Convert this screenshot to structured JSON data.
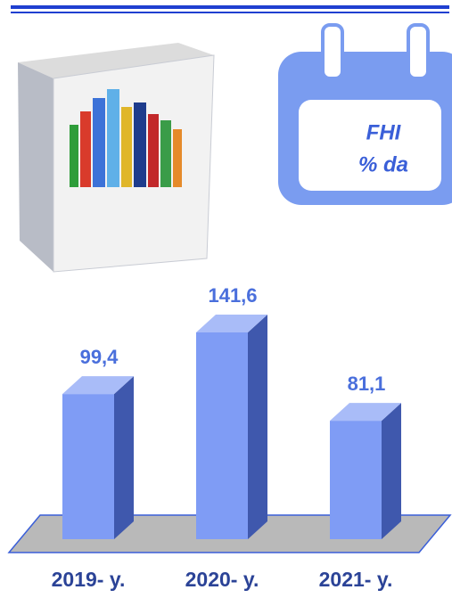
{
  "chart_data": {
    "type": "bar",
    "categories": [
      "2019- y.",
      "2020- y.",
      "2021- y."
    ],
    "values": [
      99.4,
      141.6,
      81.1
    ],
    "value_labels": [
      "99,4",
      "141,6",
      "81,1"
    ],
    "color": "#7f9cf5",
    "annotations": [
      "FHI",
      "% da"
    ]
  }
}
